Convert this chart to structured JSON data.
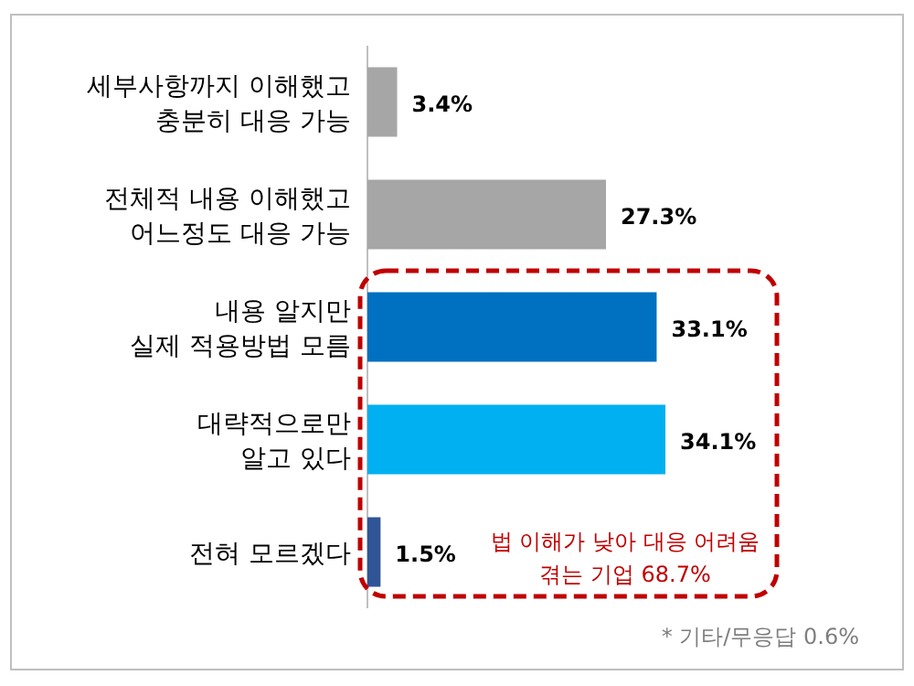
{
  "chart_data": {
    "type": "bar",
    "orientation": "horizontal",
    "data_labels": true,
    "categories": [
      "세부사항까지 이해했고\n충분히 대응 가능",
      "전체적 내용 이해했고\n어느정도 대응 가능",
      "내용 알지만\n실제 적용방법 모름",
      "대략적으로만\n알고 있다",
      "전혀 모르겠다"
    ],
    "values": [
      3.4,
      27.3,
      33.1,
      34.1,
      1.5
    ],
    "value_labels": [
      "3.4%",
      "27.3%",
      "33.1%",
      "34.1%",
      "1.5%"
    ],
    "colors": [
      "#a6a6a6",
      "#a6a6a6",
      "#0070c0",
      "#00b0f0",
      "#2f5597"
    ],
    "annotations": [
      "법 이해가 낮아 대응 어려움\n겪는 기업 68.7%",
      "* 기타/무응답 0.6%"
    ]
  }
}
